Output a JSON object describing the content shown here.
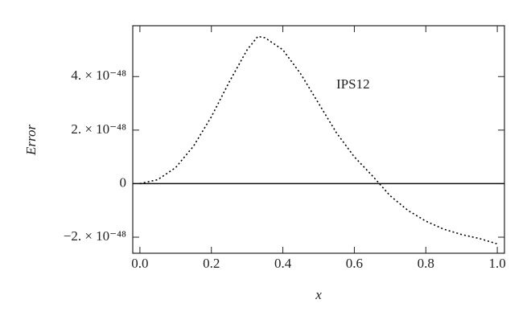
{
  "chart_data": {
    "type": "line",
    "x_label": "x",
    "y_label": "Error",
    "x": [
      0,
      0.05,
      0.1,
      0.15,
      0.2,
      0.25,
      0.3,
      0.33,
      0.35,
      0.4,
      0.45,
      0.5,
      0.55,
      0.6,
      0.65,
      0.7,
      0.75,
      0.8,
      0.85,
      0.9,
      0.95,
      1.0
    ],
    "series": [
      {
        "name": "IPS12",
        "color": "#000000",
        "dash": "dotted",
        "values": [
          0,
          1.5e-49,
          6e-49,
          1.4e-48,
          2.5e-48,
          3.8e-48,
          5e-48,
          5.5e-48,
          5.45e-48,
          5e-48,
          4.1e-48,
          3e-48,
          1.9e-48,
          1e-48,
          3e-49,
          -4.5e-49,
          -1e-48,
          -1.4e-48,
          -1.7e-48,
          -1.9e-48,
          -2.05e-48,
          -2.25e-48
        ]
      }
    ],
    "xlim": [
      -0.02,
      1.02
    ],
    "ylim": [
      -2.6e-48,
      5.9e-48
    ],
    "xticks": [
      {
        "value": 0,
        "label": "0.0"
      },
      0.2,
      0.4,
      0.6,
      0.8,
      {
        "value": 1,
        "label": "1.0"
      }
    ],
    "yticks": [
      {
        "value": -2e-48,
        "label": "−2. × 10⁻⁴⁸"
      },
      0,
      {
        "value": 2e-48,
        "label": "2. × 10⁻⁴⁸"
      },
      {
        "value": 4e-48,
        "label": "4. × 10⁻⁴⁸"
      }
    ],
    "zero_line": true
  }
}
